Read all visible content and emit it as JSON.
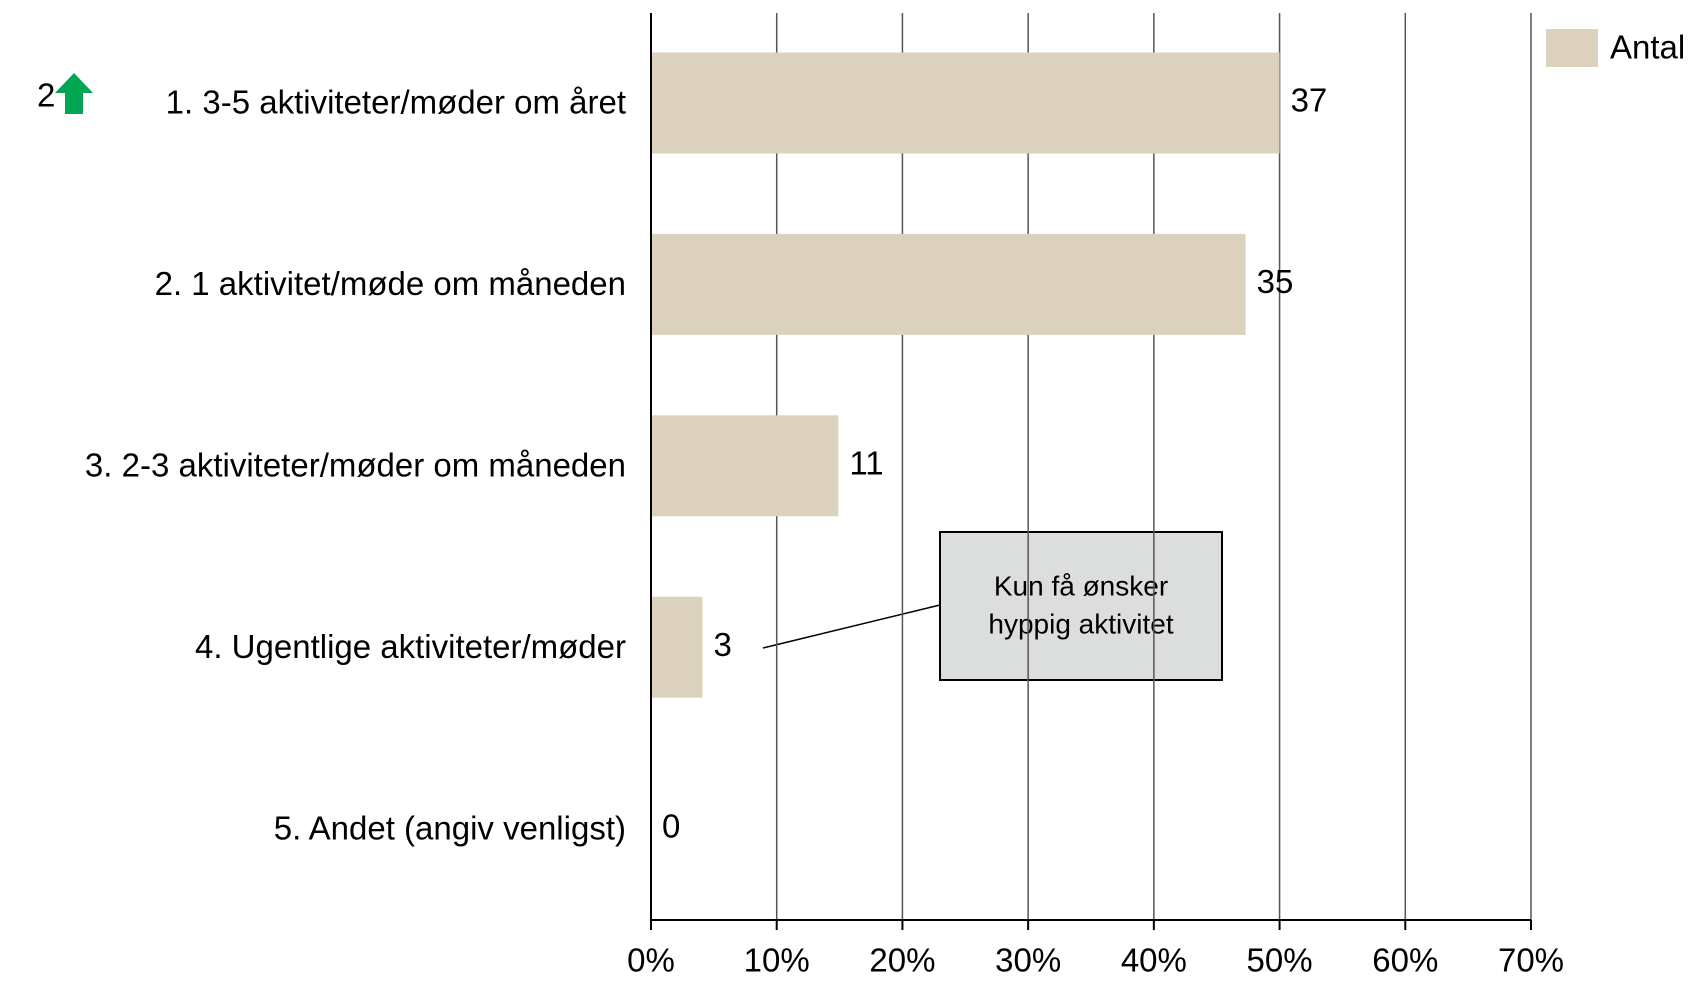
{
  "chart_data": {
    "type": "bar",
    "orientation": "horizontal",
    "categories": [
      "1. 3-5 aktiviteter/møder om året",
      "2. 1 aktivitet/møde om måneden",
      "3. 2-3 aktiviteter/møder om måneden",
      "4. Ugentlige aktiviteter/møder",
      "5. Andet (angiv venligst)"
    ],
    "series": [
      {
        "name": "Antal",
        "color": "#dcd1bd",
        "values": [
          50,
          47.3,
          14.9,
          4.1,
          0
        ],
        "counts": [
          37,
          35,
          11,
          3,
          0
        ]
      }
    ],
    "xlim": [
      0,
      70
    ],
    "xticks": [
      {
        "value": 0,
        "label": "0%"
      },
      {
        "value": 10,
        "label": "10%"
      },
      {
        "value": 20,
        "label": "20%"
      },
      {
        "value": 30,
        "label": "30%"
      },
      {
        "value": 40,
        "label": "40%"
      },
      {
        "value": 50,
        "label": "50%"
      },
      {
        "value": 60,
        "label": "60%"
      },
      {
        "value": 70,
        "label": "70%"
      }
    ],
    "grid": true,
    "legend": "top-right",
    "annotation": [
      "Kun få ønsker",
      "hyppig aktivitet"
    ],
    "marker": "2"
  }
}
